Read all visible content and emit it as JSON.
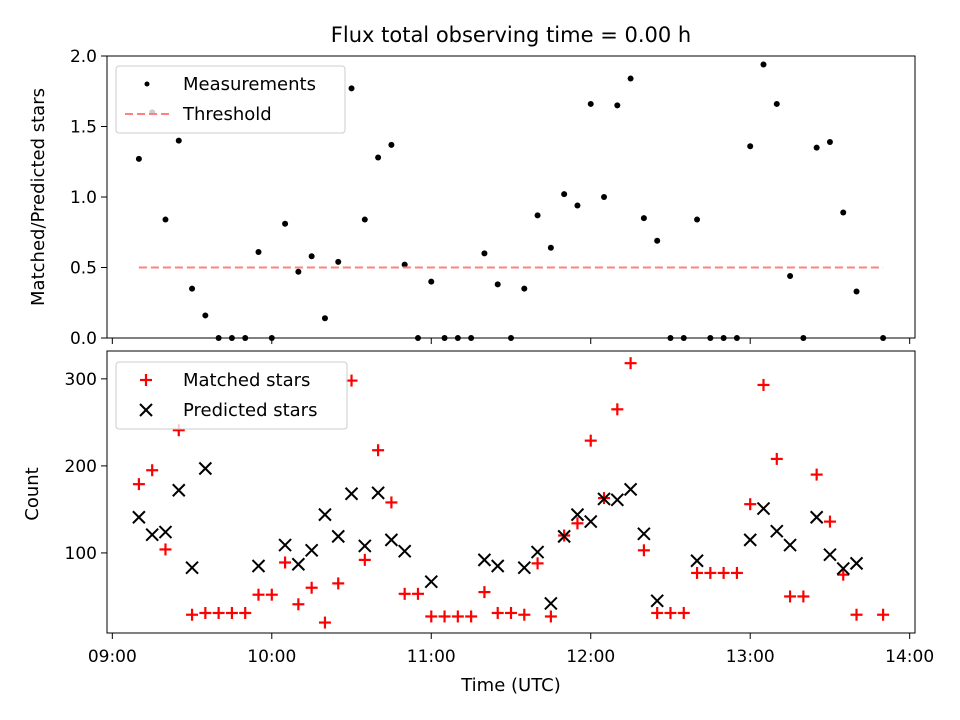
{
  "chart_data": {
    "type": "scatter",
    "title": "Flux total observing time = 0.00 h",
    "x_unit": "time of day (UTC)",
    "x_range": [
      "08:58",
      "14:02"
    ],
    "x_ticks": [
      "09:00",
      "10:00",
      "11:00",
      "12:00",
      "13:00",
      "14:00"
    ],
    "xlabel": "Time (UTC)",
    "colors": {
      "measurements": "#000000",
      "threshold": "#ff8080",
      "matched": "#ff0000",
      "predicted": "#000000"
    },
    "panels": [
      {
        "ylabel": "Matched/Predicted stars",
        "ylim": [
          0,
          2.0
        ],
        "y_ticks": [
          "0.0",
          "0.5",
          "1.0",
          "1.5",
          "2.0"
        ],
        "legend": {
          "placement": "upper-left",
          "entries": [
            "Measurements",
            "Threshold"
          ]
        },
        "series": [
          {
            "name": "Measurements",
            "marker": "dot",
            "points": [
              [
                "09:10",
                1.27
              ],
              [
                "09:15",
                1.6
              ],
              [
                "09:20",
                0.84
              ],
              [
                "09:25",
                1.4
              ],
              [
                "09:30",
                0.35
              ],
              [
                "09:35",
                0.16
              ],
              [
                "09:40",
                0.0
              ],
              [
                "09:45",
                0.0
              ],
              [
                "09:50",
                0.0
              ],
              [
                "09:55",
                0.61
              ],
              [
                "10:00",
                0.0
              ],
              [
                "10:05",
                0.81
              ],
              [
                "10:10",
                0.47
              ],
              [
                "10:15",
                0.58
              ],
              [
                "10:20",
                0.14
              ],
              [
                "10:25",
                0.54
              ],
              [
                "10:30",
                1.77
              ],
              [
                "10:35",
                0.84
              ],
              [
                "10:40",
                1.28
              ],
              [
                "10:45",
                1.37
              ],
              [
                "10:50",
                0.52
              ],
              [
                "10:55",
                0.0
              ],
              [
                "11:00",
                0.4
              ],
              [
                "11:05",
                0.0
              ],
              [
                "11:10",
                0.0
              ],
              [
                "11:15",
                0.0
              ],
              [
                "11:20",
                0.6
              ],
              [
                "11:25",
                0.38
              ],
              [
                "11:30",
                0.0
              ],
              [
                "11:35",
                0.35
              ],
              [
                "11:40",
                0.87
              ],
              [
                "11:45",
                0.64
              ],
              [
                "11:50",
                1.02
              ],
              [
                "11:55",
                0.94
              ],
              [
                "12:00",
                1.66
              ],
              [
                "12:05",
                1.0
              ],
              [
                "12:10",
                1.65
              ],
              [
                "12:15",
                1.84
              ],
              [
                "12:20",
                0.85
              ],
              [
                "12:25",
                0.69
              ],
              [
                "12:30",
                0.0
              ],
              [
                "12:35",
                0.0
              ],
              [
                "12:40",
                0.84
              ],
              [
                "12:45",
                0.0
              ],
              [
                "12:50",
                0.0
              ],
              [
                "12:55",
                0.0
              ],
              [
                "13:00",
                1.36
              ],
              [
                "13:05",
                1.94
              ],
              [
                "13:10",
                1.66
              ],
              [
                "13:15",
                0.44
              ],
              [
                "13:20",
                0.0
              ],
              [
                "13:25",
                1.35
              ],
              [
                "13:30",
                1.39
              ],
              [
                "13:35",
                0.89
              ],
              [
                "13:40",
                0.33
              ],
              [
                "13:50",
                0.0
              ]
            ]
          },
          {
            "name": "Threshold",
            "marker": "dashed-line",
            "points": [
              [
                "09:10",
                0.5
              ],
              [
                "13:50",
                0.5
              ]
            ]
          }
        ]
      },
      {
        "ylabel": "Count",
        "ylim": [
          8,
          332
        ],
        "y_ticks": [
          "100",
          "200",
          "300"
        ],
        "legend": {
          "placement": "upper-left",
          "entries": [
            "Matched stars",
            "Predicted stars"
          ]
        },
        "series": [
          {
            "name": "Matched stars",
            "marker": "plus",
            "points": [
              [
                "09:10",
                179
              ],
              [
                "09:15",
                195
              ],
              [
                "09:20",
                104
              ],
              [
                "09:25",
                241
              ],
              [
                "09:30",
                29
              ],
              [
                "09:35",
                31
              ],
              [
                "09:40",
                31
              ],
              [
                "09:45",
                31
              ],
              [
                "09:50",
                31
              ],
              [
                "09:55",
                52
              ],
              [
                "10:00",
                52
              ],
              [
                "10:05",
                89
              ],
              [
                "10:10",
                41
              ],
              [
                "10:15",
                60
              ],
              [
                "10:20",
                20
              ],
              [
                "10:25",
                65
              ],
              [
                "10:30",
                298
              ],
              [
                "10:35",
                92
              ],
              [
                "10:40",
                218
              ],
              [
                "10:45",
                158
              ],
              [
                "10:50",
                53
              ],
              [
                "10:55",
                53
              ],
              [
                "11:00",
                27
              ],
              [
                "11:05",
                27
              ],
              [
                "11:10",
                27
              ],
              [
                "11:15",
                27
              ],
              [
                "11:20",
                55
              ],
              [
                "11:25",
                31
              ],
              [
                "11:30",
                31
              ],
              [
                "11:35",
                29
              ],
              [
                "11:40",
                88
              ],
              [
                "11:45",
                27
              ],
              [
                "11:50",
                120
              ],
              [
                "11:55",
                134
              ],
              [
                "12:00",
                229
              ],
              [
                "12:05",
                163
              ],
              [
                "12:10",
                265
              ],
              [
                "12:15",
                318
              ],
              [
                "12:20",
                103
              ],
              [
                "12:25",
                31
              ],
              [
                "12:30",
                31
              ],
              [
                "12:35",
                31
              ],
              [
                "12:40",
                77
              ],
              [
                "12:45",
                77
              ],
              [
                "12:50",
                77
              ],
              [
                "12:55",
                77
              ],
              [
                "13:00",
                156
              ],
              [
                "13:05",
                293
              ],
              [
                "13:10",
                208
              ],
              [
                "13:15",
                50
              ],
              [
                "13:20",
                50
              ],
              [
                "13:25",
                190
              ],
              [
                "13:30",
                136
              ],
              [
                "13:35",
                75
              ],
              [
                "13:40",
                29
              ],
              [
                "13:50",
                29
              ]
            ]
          },
          {
            "name": "Predicted stars",
            "marker": "x",
            "points": [
              [
                "09:10",
                141
              ],
              [
                "09:15",
                121
              ],
              [
                "09:20",
                124
              ],
              [
                "09:25",
                172
              ],
              [
                "09:30",
                83
              ],
              [
                "09:35",
                197
              ],
              [
                "09:55",
                85
              ],
              [
                "10:05",
                109
              ],
              [
                "10:10",
                87
              ],
              [
                "10:15",
                103
              ],
              [
                "10:20",
                144
              ],
              [
                "10:25",
                119
              ],
              [
                "10:30",
                168
              ],
              [
                "10:35",
                108
              ],
              [
                "10:40",
                169
              ],
              [
                "10:45",
                115
              ],
              [
                "10:50",
                102
              ],
              [
                "11:00",
                67
              ],
              [
                "11:20",
                92
              ],
              [
                "11:25",
                85
              ],
              [
                "11:35",
                83
              ],
              [
                "11:40",
                101
              ],
              [
                "11:45",
                42
              ],
              [
                "11:50",
                119
              ],
              [
                "11:55",
                144
              ],
              [
                "12:00",
                136
              ],
              [
                "12:05",
                162
              ],
              [
                "12:10",
                161
              ],
              [
                "12:15",
                173
              ],
              [
                "12:20",
                122
              ],
              [
                "12:25",
                45
              ],
              [
                "12:40",
                91
              ],
              [
                "13:00",
                115
              ],
              [
                "13:05",
                151
              ],
              [
                "13:10",
                125
              ],
              [
                "13:15",
                109
              ],
              [
                "13:25",
                141
              ],
              [
                "13:30",
                98
              ],
              [
                "13:35",
                82
              ],
              [
                "13:40",
                88
              ]
            ]
          }
        ]
      }
    ]
  }
}
